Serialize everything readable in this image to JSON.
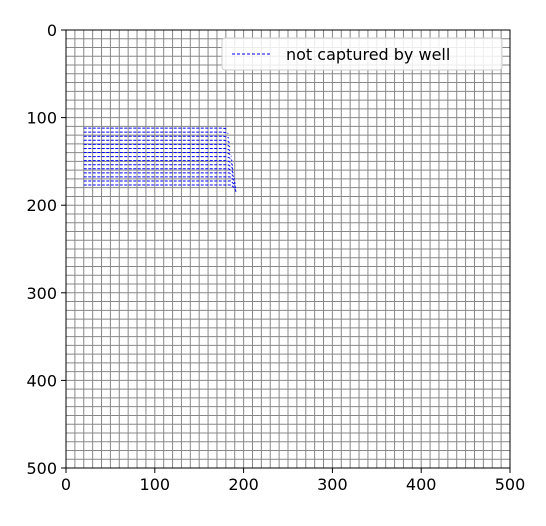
{
  "chart_data": {
    "type": "line",
    "xlim": [
      0,
      500
    ],
    "ylim": [
      500,
      0
    ],
    "y_inverted": true,
    "grid": {
      "visible": true,
      "spacing": 10,
      "color": "#888888"
    },
    "xticks": [
      0,
      100,
      200,
      300,
      400,
      500
    ],
    "xtick_labels": [
      "0",
      "100",
      "200",
      "300",
      "400",
      "500"
    ],
    "yticks": [
      0,
      100,
      200,
      300,
      400,
      500
    ],
    "ytick_labels": [
      "0",
      "100",
      "200",
      "300",
      "400",
      "500"
    ],
    "legend": {
      "placement": "top-right",
      "entries": [
        "not captured by well"
      ]
    },
    "series": [
      {
        "name": "not captured by well",
        "color": "#0000ff",
        "style": "dashed",
        "pathlines": {
          "count": 15,
          "x_start": 20,
          "x_end_first": 182,
          "x_end_last": 192,
          "y_first": 112,
          "y_last": 177,
          "final_drop_first": 1,
          "final_drop_last": 9
        }
      }
    ]
  }
}
